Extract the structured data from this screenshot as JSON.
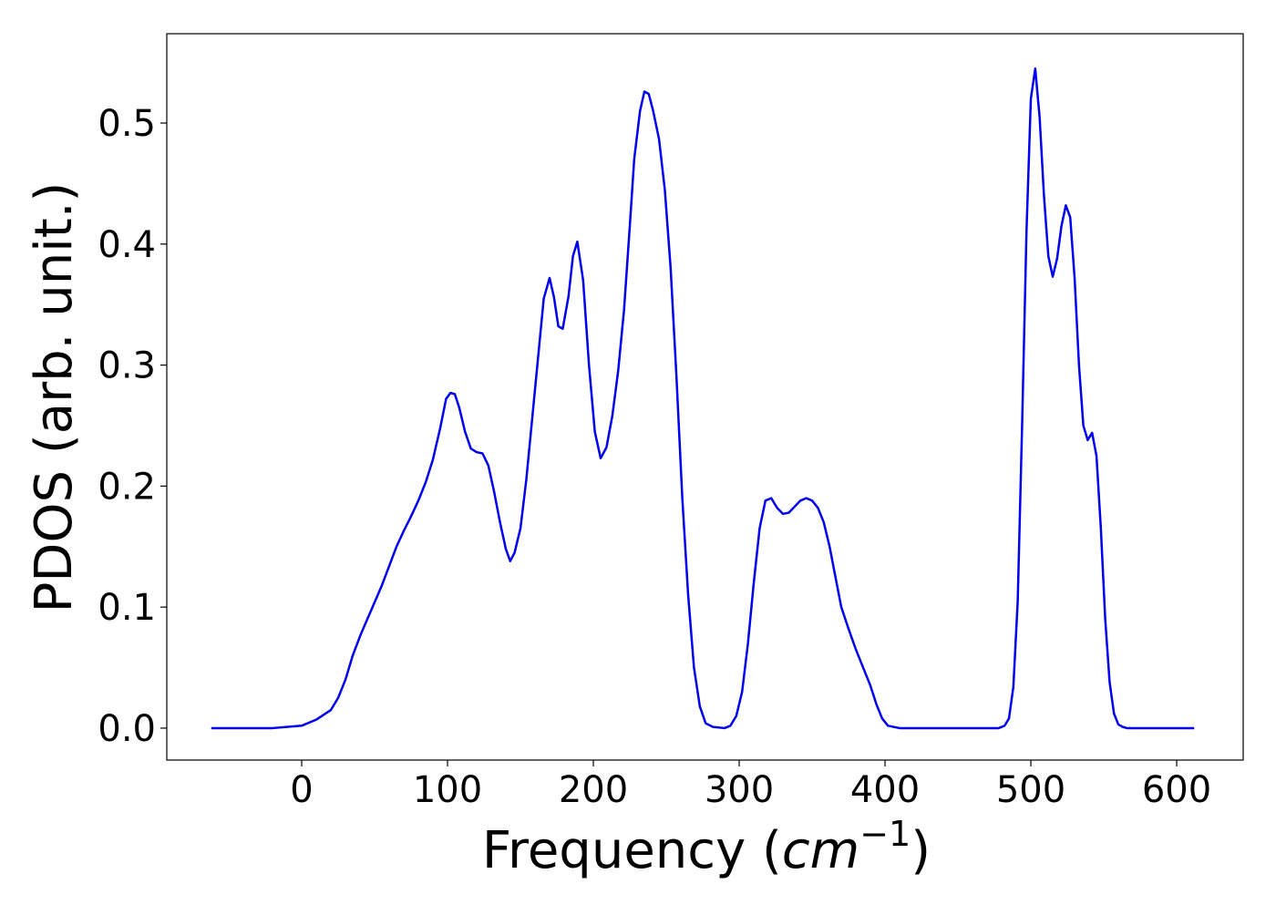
{
  "chart_data": {
    "type": "line",
    "xlabel_parts": [
      "Frequency (",
      "cm",
      "−1",
      ")"
    ],
    "ylabel": "PDOS (arb. unit.)",
    "x": [
      -62,
      -20,
      0,
      10,
      20,
      25,
      30,
      35,
      40,
      45,
      50,
      55,
      60,
      65,
      70,
      75,
      80,
      85,
      90,
      95,
      99,
      102,
      105,
      108,
      112,
      116,
      120,
      124,
      128,
      132,
      136,
      140,
      143,
      146,
      150,
      154,
      158,
      162,
      166,
      170,
      173,
      176,
      179,
      183,
      186,
      189,
      193,
      197,
      201,
      205,
      209,
      213,
      217,
      221,
      225,
      228,
      232,
      235,
      238,
      241,
      245,
      249,
      253,
      257,
      261,
      265,
      269,
      273,
      277,
      282,
      290,
      294,
      298,
      302,
      306,
      310,
      314,
      318,
      322,
      326,
      330,
      334,
      338,
      342,
      346,
      350,
      354,
      358,
      362,
      366,
      370,
      375,
      380,
      385,
      390,
      394,
      398,
      402,
      410,
      470,
      478,
      482,
      485,
      488,
      491,
      494,
      497,
      500,
      503,
      506,
      509,
      512,
      515,
      518,
      521,
      524,
      527,
      530,
      533,
      536,
      539,
      542,
      545,
      548,
      551,
      554,
      557,
      560,
      563,
      566,
      575,
      612
    ],
    "series": [
      {
        "name": "PDOS",
        "color": "#0000ee",
        "values": [
          0,
          0,
          0.002,
          0.007,
          0.015,
          0.025,
          0.04,
          0.06,
          0.076,
          0.09,
          0.104,
          0.118,
          0.134,
          0.15,
          0.163,
          0.175,
          0.188,
          0.203,
          0.222,
          0.248,
          0.272,
          0.277,
          0.276,
          0.265,
          0.245,
          0.231,
          0.228,
          0.227,
          0.217,
          0.195,
          0.17,
          0.148,
          0.138,
          0.145,
          0.165,
          0.205,
          0.255,
          0.305,
          0.355,
          0.372,
          0.356,
          0.332,
          0.33,
          0.357,
          0.39,
          0.402,
          0.37,
          0.3,
          0.245,
          0.223,
          0.232,
          0.258,
          0.295,
          0.345,
          0.415,
          0.47,
          0.51,
          0.526,
          0.524,
          0.51,
          0.487,
          0.445,
          0.38,
          0.29,
          0.19,
          0.11,
          0.05,
          0.018,
          0.004,
          0.001,
          0,
          0.002,
          0.01,
          0.03,
          0.07,
          0.12,
          0.165,
          0.188,
          0.19,
          0.182,
          0.177,
          0.178,
          0.183,
          0.188,
          0.19,
          0.188,
          0.182,
          0.17,
          0.15,
          0.125,
          0.1,
          0.082,
          0.065,
          0.05,
          0.035,
          0.02,
          0.008,
          0.002,
          0,
          0,
          0,
          0.002,
          0.008,
          0.034,
          0.105,
          0.25,
          0.41,
          0.52,
          0.545,
          0.505,
          0.44,
          0.39,
          0.373,
          0.388,
          0.415,
          0.432,
          0.422,
          0.372,
          0.3,
          0.25,
          0.238,
          0.244,
          0.225,
          0.165,
          0.09,
          0.038,
          0.012,
          0.003,
          0.001,
          0,
          0,
          0
        ]
      }
    ],
    "xlim": [
      -92.5,
      645.6
    ],
    "ylim": [
      -0.0264,
      0.5738
    ],
    "xticks": [
      0,
      100,
      200,
      300,
      400,
      500,
      600
    ],
    "yticks": [
      {
        "value": 0,
        "label": "0.0"
      },
      0.1,
      0.2,
      0.3,
      0.4,
      0.5
    ]
  }
}
